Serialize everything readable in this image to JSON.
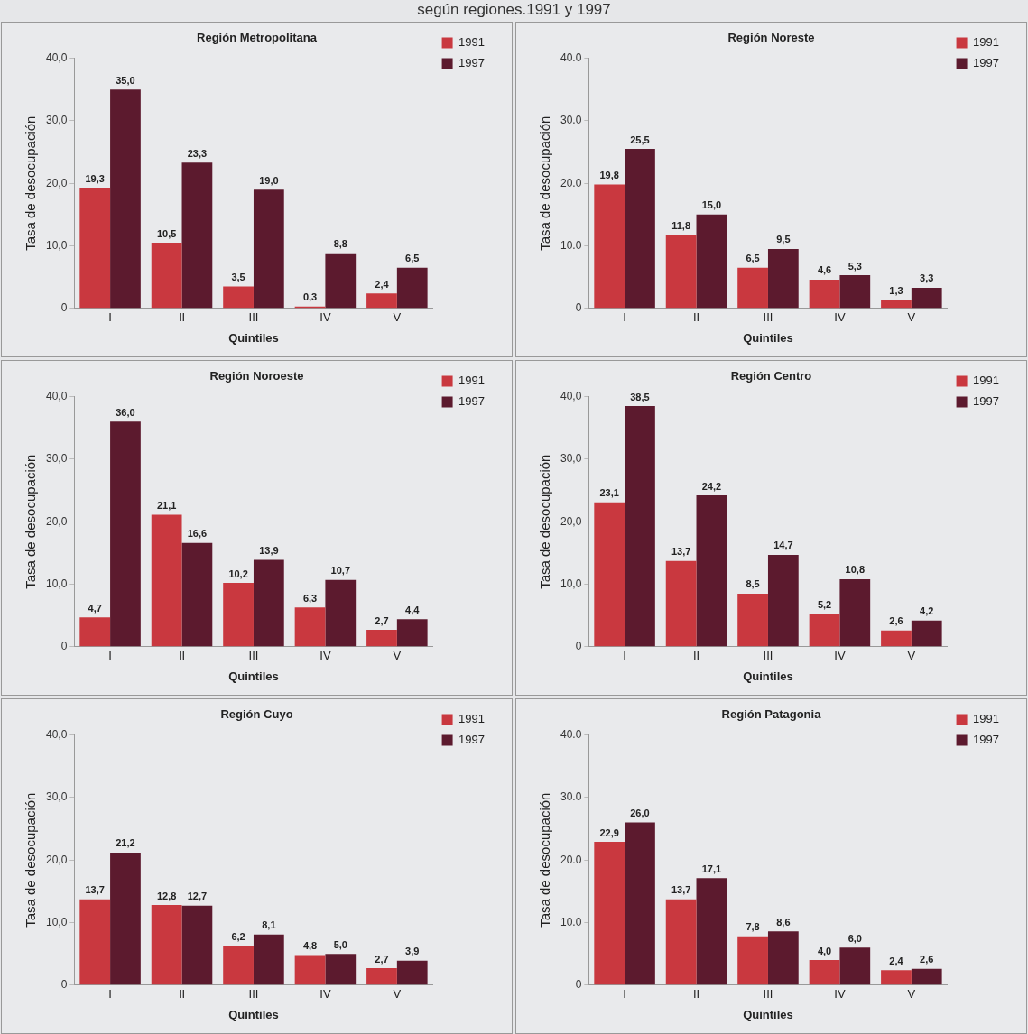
{
  "chart_data": [
    {
      "type": "other",
      "title": "según regiones.1991 y 1997"
    },
    {
      "type": "bar",
      "title": "Región Metropolitana",
      "xlabel": "Quintiles",
      "ylabel": "Tasa de desocupación",
      "categories": [
        "I",
        "II",
        "III",
        "IV",
        "V"
      ],
      "ylim": [
        0,
        40
      ],
      "yticks": [
        {
          "value": 0,
          "label": "0"
        },
        {
          "value": 10,
          "label": "10,0"
        },
        {
          "value": 20,
          "label": "20,0"
        },
        {
          "value": 30,
          "label": "30,0"
        },
        {
          "value": 40,
          "label": "40,0"
        }
      ],
      "grid": false,
      "legend": "top right",
      "series": [
        {
          "name": "1991",
          "color": "#c9383f",
          "values": [
            19.3,
            10.5,
            3.5,
            0.3,
            2.4
          ],
          "value_labels": [
            "19,3",
            "10,5",
            "3,5",
            "0,3",
            "2,4"
          ]
        },
        {
          "name": "1997",
          "color": "#5c1a2e",
          "values": [
            35.0,
            23.3,
            19.0,
            8.8,
            6.5
          ],
          "value_labels": [
            "35,0",
            "23,3",
            "19,0",
            "8,8",
            "6,5"
          ]
        }
      ]
    },
    {
      "type": "bar",
      "title": "Región Noreste",
      "xlabel": "Quintiles",
      "ylabel": "Tasa de desocupación",
      "categories": [
        "I",
        "II",
        "III",
        "IV",
        "V"
      ],
      "ylim": [
        0,
        40
      ],
      "yticks": [
        {
          "value": 0,
          "label": "0"
        },
        {
          "value": 10,
          "label": "10.0"
        },
        {
          "value": 20,
          "label": "20.0"
        },
        {
          "value": 30,
          "label": "30.0"
        },
        {
          "value": 40,
          "label": "40.0"
        }
      ],
      "grid": false,
      "legend": "top right",
      "series": [
        {
          "name": "1991",
          "color": "#c9383f",
          "values": [
            19.8,
            11.8,
            6.5,
            4.6,
            1.3
          ],
          "value_labels": [
            "19,8",
            "11,8",
            "6,5",
            "4,6",
            "1,3"
          ]
        },
        {
          "name": "1997",
          "color": "#5c1a2e",
          "values": [
            25.5,
            15.0,
            9.5,
            5.3,
            3.3
          ],
          "value_labels": [
            "25,5",
            "15,0",
            "9,5",
            "5,3",
            "3,3"
          ]
        }
      ]
    },
    {
      "type": "bar",
      "title": "Región Noroeste",
      "xlabel": "Quintiles",
      "ylabel": "Tasa de desocupación",
      "categories": [
        "I",
        "II",
        "III",
        "IV",
        "V"
      ],
      "ylim": [
        0,
        40
      ],
      "yticks": [
        {
          "value": 0,
          "label": "0"
        },
        {
          "value": 10,
          "label": "10,0"
        },
        {
          "value": 20,
          "label": "20,0"
        },
        {
          "value": 30,
          "label": "30,0"
        },
        {
          "value": 40,
          "label": "40,0"
        }
      ],
      "grid": false,
      "legend": "top right",
      "series": [
        {
          "name": "1991",
          "color": "#c9383f",
          "values": [
            4.7,
            21.1,
            10.2,
            6.3,
            2.7
          ],
          "value_labels": [
            "4,7",
            "21,1",
            "10,2",
            "6,3",
            "2,7"
          ]
        },
        {
          "name": "1997",
          "color": "#5c1a2e",
          "values": [
            36.0,
            16.6,
            13.9,
            10.7,
            4.4
          ],
          "value_labels": [
            "36,0",
            "16,6",
            "13,9",
            "10,7",
            "4,4"
          ]
        }
      ]
    },
    {
      "type": "bar",
      "title": "Región Centro",
      "xlabel": "Quintiles",
      "ylabel": "Tasa de desocupación",
      "categories": [
        "I",
        "II",
        "III",
        "IV",
        "V"
      ],
      "ylim": [
        0,
        40
      ],
      "yticks": [
        {
          "value": 0,
          "label": "0"
        },
        {
          "value": 10,
          "label": "10,0"
        },
        {
          "value": 20,
          "label": "20,0"
        },
        {
          "value": 30,
          "label": "30,0"
        },
        {
          "value": 40,
          "label": "40,0"
        }
      ],
      "grid": false,
      "legend": "top right",
      "series": [
        {
          "name": "1991",
          "color": "#c9383f",
          "values": [
            23.1,
            13.7,
            8.5,
            5.2,
            2.6
          ],
          "value_labels": [
            "23,1",
            "13,7",
            "8,5",
            "5,2",
            "2,6"
          ]
        },
        {
          "name": "1997",
          "color": "#5c1a2e",
          "values": [
            38.5,
            24.2,
            14.7,
            10.8,
            4.2
          ],
          "value_labels": [
            "38,5",
            "24,2",
            "14,7",
            "10,8",
            "4,2"
          ]
        }
      ]
    },
    {
      "type": "bar",
      "title": "Región Cuyo",
      "xlabel": "Quintiles",
      "ylabel": "Tasa de desocupación",
      "categories": [
        "I",
        "II",
        "III",
        "IV",
        "V"
      ],
      "ylim": [
        0,
        40
      ],
      "yticks": [
        {
          "value": 0,
          "label": "0"
        },
        {
          "value": 10,
          "label": "10,0"
        },
        {
          "value": 20,
          "label": "20,0"
        },
        {
          "value": 30,
          "label": "30,0"
        },
        {
          "value": 40,
          "label": "40,0"
        }
      ],
      "grid": false,
      "legend": "top right",
      "series": [
        {
          "name": "1991",
          "color": "#c9383f",
          "values": [
            13.7,
            12.8,
            6.2,
            4.8,
            2.7
          ],
          "value_labels": [
            "13,7",
            "12,8",
            "6,2",
            "4,8",
            "2,7"
          ]
        },
        {
          "name": "1997",
          "color": "#5c1a2e",
          "values": [
            21.2,
            12.7,
            8.1,
            5.0,
            3.9
          ],
          "value_labels": [
            "21,2",
            "12,7",
            "8,1",
            "5,0",
            "3,9"
          ]
        }
      ]
    },
    {
      "type": "bar",
      "title": "Región Patagonia",
      "xlabel": "Quintiles",
      "ylabel": "Tasa de desocupación",
      "categories": [
        "I",
        "II",
        "III",
        "IV",
        "V"
      ],
      "ylim": [
        0,
        40
      ],
      "yticks": [
        {
          "value": 0,
          "label": "0"
        },
        {
          "value": 10,
          "label": "10.0"
        },
        {
          "value": 20,
          "label": "20.0"
        },
        {
          "value": 30,
          "label": "30.0"
        },
        {
          "value": 40,
          "label": "40.0"
        }
      ],
      "grid": false,
      "legend": "top right",
      "series": [
        {
          "name": "1991",
          "color": "#c9383f",
          "values": [
            22.9,
            13.7,
            7.8,
            4.0,
            2.4
          ],
          "value_labels": [
            "22,9",
            "13,7",
            "7,8",
            "4,0",
            "2,4"
          ]
        },
        {
          "name": "1997",
          "color": "#5c1a2e",
          "values": [
            26.0,
            17.1,
            8.6,
            6.0,
            2.6
          ],
          "value_labels": [
            "26,0",
            "17,1",
            "8,6",
            "6,0",
            "2,6"
          ]
        }
      ]
    }
  ]
}
